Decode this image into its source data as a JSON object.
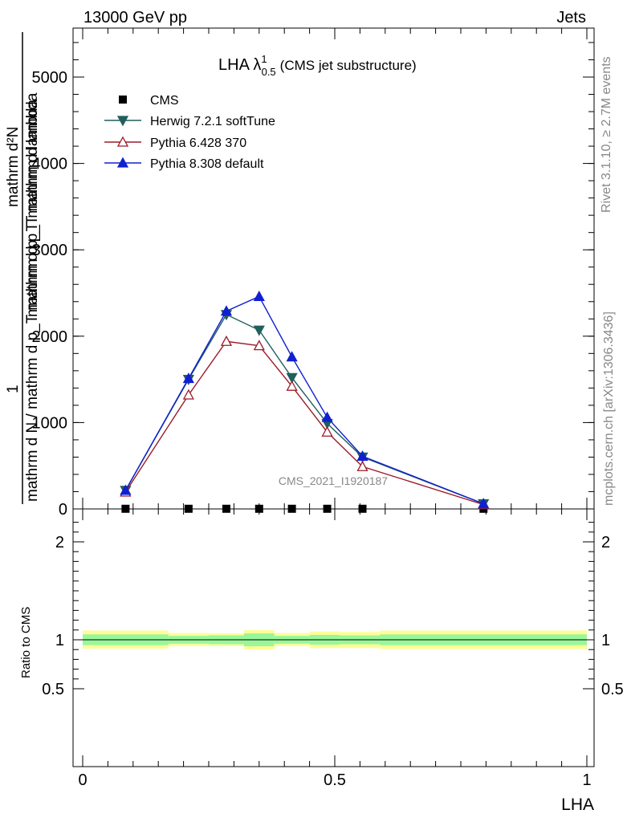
{
  "header": {
    "energy_label": "13000 GeV pp",
    "process_label": "Jets"
  },
  "side": {
    "rivet_label": "Rivet 3.1.10, ≥ 2.7M events",
    "mcplots_label": "mcplots.cern.ch [arXiv:1306.3436]"
  },
  "chart_data": {
    "type": "line",
    "title": {
      "main": "LHA λ",
      "sup": "1",
      "sub": "0.5",
      "suffix": "(CMS jet substructure)"
    },
    "watermark": "CMS_2021_I1920187",
    "ylabel_top": {
      "numerator": "mathrm d²N",
      "one": "1",
      "denominator": "mathrm d p_T mathrm d lambda",
      "denom_left": "mathrm d N / mathrm d p_T",
      "frac_word": "mathrm d p_T mathrm d lambda"
    },
    "ylabel_top_lines": [
      "mathrm d²N",
      "mathrm d p_T mathrm d lambda",
      "mathrm d N / mathrm d p_T mathrm d p_T mathrm d lambda"
    ],
    "ylabel_ratio": "Ratio to CMS",
    "xlabel": "LHA",
    "xlim": [
      -0.02,
      1.0
    ],
    "ylim_top": [
      0,
      5500
    ],
    "ylim_ratio": [
      0.35,
      2.3
    ],
    "x_ticks": [
      {
        "v": 0,
        "label": "0"
      },
      {
        "v": 0.5,
        "label": "0.5"
      },
      {
        "v": 1,
        "label": "1"
      }
    ],
    "y_ticks_top": [
      {
        "v": 0,
        "label": "0"
      },
      {
        "v": 1000,
        "label": "1000"
      },
      {
        "v": 2000,
        "label": "2000"
      },
      {
        "v": 3000,
        "label": "3000"
      },
      {
        "v": 4000,
        "label": "4000"
      },
      {
        "v": 5000,
        "label": "5000"
      }
    ],
    "y_ticks_ratio": [
      {
        "v": 0.5,
        "label": "0.5"
      },
      {
        "v": 1,
        "label": "1"
      },
      {
        "v": 2,
        "label": "2"
      }
    ],
    "legend": [
      "CMS",
      "Herwig 7.2.1 softTune",
      "Pythia 6.428 370",
      "Pythia 8.308 default"
    ],
    "series": [
      {
        "name": "CMS",
        "color": "#000000",
        "marker": "square",
        "x": [
          0.085,
          0.21,
          0.285,
          0.35,
          0.415,
          0.485,
          0.555,
          0.795
        ],
        "y": [
          2,
          2,
          2,
          2,
          2,
          2,
          2,
          2
        ]
      },
      {
        "name": "Herwig 7.2.1 softTune",
        "color": "#215f5c",
        "marker": "triangle-down",
        "x": [
          0.085,
          0.21,
          0.285,
          0.35,
          0.415,
          0.485,
          0.555,
          0.795
        ],
        "y": [
          215,
          1500,
          2250,
          2070,
          1520,
          990,
          600,
          60
        ]
      },
      {
        "name": "Pythia 6.428 370",
        "color": "#9b1c2a",
        "marker": "triangle-up-open",
        "x": [
          0.085,
          0.21,
          0.285,
          0.35,
          0.415,
          0.485,
          0.555,
          0.795
        ],
        "y": [
          195,
          1320,
          1940,
          1890,
          1420,
          890,
          490,
          50
        ]
      },
      {
        "name": "Pythia 8.308 default",
        "color": "#1020d0",
        "marker": "triangle-up",
        "x": [
          0.085,
          0.21,
          0.285,
          0.35,
          0.415,
          0.485,
          0.555,
          0.795
        ],
        "y": [
          215,
          1510,
          2290,
          2460,
          1760,
          1060,
          610,
          60
        ]
      }
    ],
    "ratio_bands": [
      {
        "x0": 0.0,
        "x1": 0.17,
        "inner": [
          0.945,
          1.055
        ],
        "outer": [
          0.91,
          1.095
        ]
      },
      {
        "x0": 0.17,
        "x1": 0.25,
        "inner": [
          0.96,
          1.04
        ],
        "outer": [
          0.935,
          1.07
        ]
      },
      {
        "x0": 0.25,
        "x1": 0.32,
        "inner": [
          0.955,
          1.045
        ],
        "outer": [
          0.935,
          1.065
        ]
      },
      {
        "x0": 0.32,
        "x1": 0.38,
        "inner": [
          0.935,
          1.065
        ],
        "outer": [
          0.9,
          1.1
        ]
      },
      {
        "x0": 0.38,
        "x1": 0.45,
        "inner": [
          0.96,
          1.04
        ],
        "outer": [
          0.935,
          1.07
        ]
      },
      {
        "x0": 0.45,
        "x1": 0.51,
        "inner": [
          0.95,
          1.05
        ],
        "outer": [
          0.915,
          1.085
        ]
      },
      {
        "x0": 0.51,
        "x1": 0.59,
        "inner": [
          0.955,
          1.045
        ],
        "outer": [
          0.915,
          1.08
        ]
      },
      {
        "x0": 0.59,
        "x1": 1.0,
        "inner": [
          0.945,
          1.055
        ],
        "outer": [
          0.905,
          1.095
        ]
      }
    ],
    "ratio_inner_color": "#99f799",
    "ratio_outer_color": "#fdfd99"
  }
}
